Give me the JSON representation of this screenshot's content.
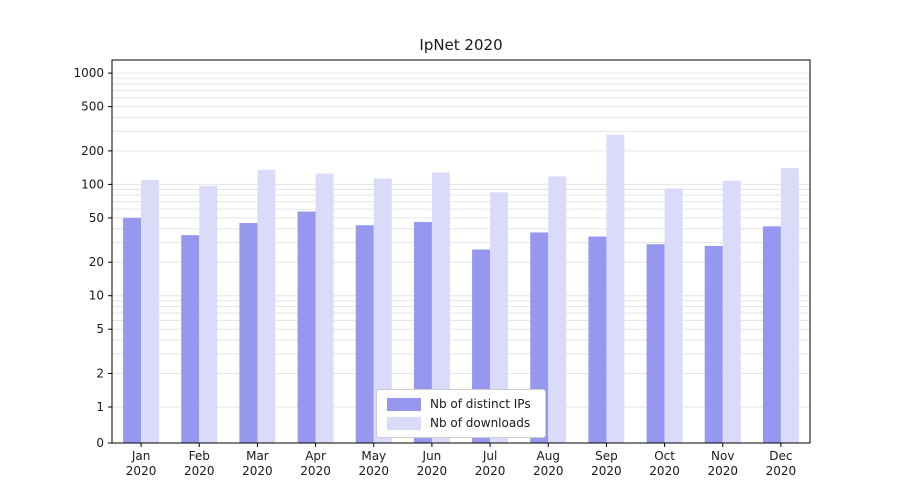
{
  "chart_data": {
    "type": "bar",
    "title": "IpNet 2020",
    "y_scale": "log",
    "ylim": [
      0,
      1300
    ],
    "y_ticks": [
      1000,
      500,
      200,
      100,
      50,
      20,
      10,
      5,
      2,
      1,
      0
    ],
    "grid": true,
    "legend_position": "lower center",
    "categories": [
      {
        "month": "Jan",
        "year": "2020"
      },
      {
        "month": "Feb",
        "year": "2020"
      },
      {
        "month": "Mar",
        "year": "2020"
      },
      {
        "month": "Apr",
        "year": "2020"
      },
      {
        "month": "May",
        "year": "2020"
      },
      {
        "month": "Jun",
        "year": "2020"
      },
      {
        "month": "Jul",
        "year": "2020"
      },
      {
        "month": "Aug",
        "year": "2020"
      },
      {
        "month": "Sep",
        "year": "2020"
      },
      {
        "month": "Oct",
        "year": "2020"
      },
      {
        "month": "Nov",
        "year": "2020"
      },
      {
        "month": "Dec",
        "year": "2020"
      }
    ],
    "series": [
      {
        "name": "Nb of distinct IPs",
        "color": "#9697ee",
        "values": [
          50,
          35,
          45,
          57,
          43,
          46,
          26,
          37,
          34,
          29,
          28,
          42
        ]
      },
      {
        "name": "Nb of downloads",
        "color": "#dadaf9",
        "values": [
          110,
          97,
          135,
          125,
          113,
          128,
          85,
          118,
          280,
          92,
          108,
          140
        ]
      }
    ]
  },
  "colors": {
    "grid": "#e5e5e5",
    "axis": "#000000",
    "text": "#1a1a1a",
    "legend_border": "#cccccc"
  }
}
